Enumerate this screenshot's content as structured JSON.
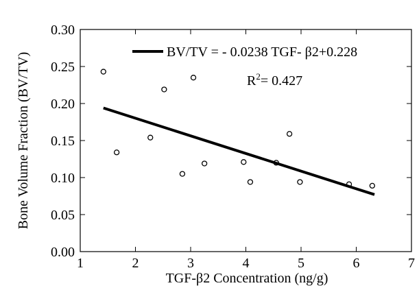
{
  "chart_data": {
    "type": "scatter",
    "x_label": "TGF-β2 Concentration (ng/g)",
    "y_label": "Bone Volume Fraction (BV/TV)",
    "x": [
      1.42,
      1.66,
      2.27,
      2.52,
      3.05,
      2.85,
      3.25,
      3.96,
      4.08,
      4.55,
      4.79,
      4.98,
      5.87,
      6.29
    ],
    "values": [
      0.243,
      0.134,
      0.154,
      0.219,
      0.235,
      0.105,
      0.119,
      0.121,
      0.094,
      0.12,
      0.159,
      0.094,
      0.091,
      0.089
    ],
    "color": "#000000",
    "fit": {
      "name": "BV/TV = - 0.0238 TGF- β2+0.228",
      "x": [
        1.42,
        6.33
      ],
      "values": [
        0.194,
        0.077
      ],
      "color": "#000000"
    },
    "r2": {
      "base": "R",
      "sup": "2",
      "rest": "= 0.427"
    },
    "xlim": [
      1,
      7
    ],
    "xticks": [
      1,
      2,
      3,
      4,
      5,
      6,
      7
    ],
    "ylim": [
      0,
      0.3
    ],
    "yticks": [
      {
        "value": 0,
        "label": "0.00"
      },
      {
        "value": 0.05,
        "label": "0.05"
      },
      {
        "value": 0.1,
        "label": "0.10"
      },
      {
        "value": 0.15,
        "label": "0.15"
      },
      {
        "value": 0.2,
        "label": "0.20"
      },
      {
        "value": 0.25,
        "label": "0.25"
      },
      {
        "value": 0.3,
        "label": "0.30"
      }
    ],
    "grid": false
  }
}
